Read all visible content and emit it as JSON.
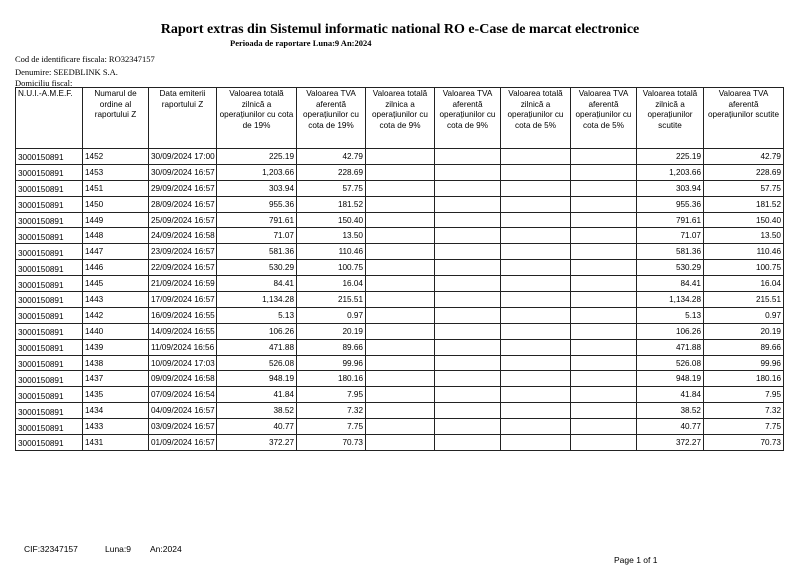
{
  "report": {
    "title": "Raport extras din Sistemul informatic national RO e-Case de marcat electronice",
    "period": "Perioada de raportare Luna:9  An:2024",
    "cod_fiscal": "Cod de identificare fiscala: RO32347157",
    "denumire": "Denumire: SEEDBLINK S.A.",
    "domiciliu": "Domiciliu fiscal:"
  },
  "table": {
    "headers": [
      "N.U.I.-A.M.E.F.",
      "Numarul de ordine al raportului Z",
      "Data emiterii raportului Z",
      "Valoarea totală zilnică a operațiunilor cu cota de 19%",
      "Valoarea TVA aferentă operațiunilor cu cota de 19%",
      "Valoarea totală zilnica a operațiunilor cu cota de 9%",
      "Valoarea TVA aferentă operațiunilor cu cota de 9%",
      "Valoarea totală zilnică a operațiunilor cu cota de 5%",
      "Valoarea TVA aferentă operațiunilor cu cota de 5%",
      "Valoarea totală zilnică a operațiunilor scutite",
      "Valoarea TVA aferentă operațiunilor scutite"
    ],
    "rows": [
      [
        "3000150891",
        "1452",
        "30/09/2024 17:00",
        "225.19",
        "42.79",
        "",
        "",
        "",
        "",
        "225.19",
        "42.79"
      ],
      [
        "3000150891",
        "1453",
        "30/09/2024 16:57",
        "1,203.66",
        "228.69",
        "",
        "",
        "",
        "",
        "1,203.66",
        "228.69"
      ],
      [
        "3000150891",
        "1451",
        "29/09/2024 16:57",
        "303.94",
        "57.75",
        "",
        "",
        "",
        "",
        "303.94",
        "57.75"
      ],
      [
        "3000150891",
        "1450",
        "28/09/2024 16:57",
        "955.36",
        "181.52",
        "",
        "",
        "",
        "",
        "955.36",
        "181.52"
      ],
      [
        "3000150891",
        "1449",
        "25/09/2024 16:57",
        "791.61",
        "150.40",
        "",
        "",
        "",
        "",
        "791.61",
        "150.40"
      ],
      [
        "3000150891",
        "1448",
        "24/09/2024 16:58",
        "71.07",
        "13.50",
        "",
        "",
        "",
        "",
        "71.07",
        "13.50"
      ],
      [
        "3000150891",
        "1447",
        "23/09/2024 16:57",
        "581.36",
        "110.46",
        "",
        "",
        "",
        "",
        "581.36",
        "110.46"
      ],
      [
        "3000150891",
        "1446",
        "22/09/2024 16:57",
        "530.29",
        "100.75",
        "",
        "",
        "",
        "",
        "530.29",
        "100.75"
      ],
      [
        "3000150891",
        "1445",
        "21/09/2024 16:59",
        "84.41",
        "16.04",
        "",
        "",
        "",
        "",
        "84.41",
        "16.04"
      ],
      [
        "3000150891",
        "1443",
        "17/09/2024 16:57",
        "1,134.28",
        "215.51",
        "",
        "",
        "",
        "",
        "1,134.28",
        "215.51"
      ],
      [
        "3000150891",
        "1442",
        "16/09/2024 16:55",
        "5.13",
        "0.97",
        "",
        "",
        "",
        "",
        "5.13",
        "0.97"
      ],
      [
        "3000150891",
        "1440",
        "14/09/2024 16:55",
        "106.26",
        "20.19",
        "",
        "",
        "",
        "",
        "106.26",
        "20.19"
      ],
      [
        "3000150891",
        "1439",
        "11/09/2024 16:56",
        "471.88",
        "89.66",
        "",
        "",
        "",
        "",
        "471.88",
        "89.66"
      ],
      [
        "3000150891",
        "1438",
        "10/09/2024 17:03",
        "526.08",
        "99.96",
        "",
        "",
        "",
        "",
        "526.08",
        "99.96"
      ],
      [
        "3000150891",
        "1437",
        "09/09/2024 16:58",
        "948.19",
        "180.16",
        "",
        "",
        "",
        "",
        "948.19",
        "180.16"
      ],
      [
        "3000150891",
        "1435",
        "07/09/2024 16:54",
        "41.84",
        "7.95",
        "",
        "",
        "",
        "",
        "41.84",
        "7.95"
      ],
      [
        "3000150891",
        "1434",
        "04/09/2024 16:57",
        "38.52",
        "7.32",
        "",
        "",
        "",
        "",
        "38.52",
        "7.32"
      ],
      [
        "3000150891",
        "1433",
        "03/09/2024 16:57",
        "40.77",
        "7.75",
        "",
        "",
        "",
        "",
        "40.77",
        "7.75"
      ],
      [
        "3000150891",
        "1431",
        "01/09/2024 16:57",
        "372.27",
        "70.73",
        "",
        "",
        "",
        "",
        "372.27",
        "70.73"
      ]
    ]
  },
  "footer": {
    "cif": "CIF:32347157",
    "luna": "Luna:9",
    "an": "An:2024",
    "page": "Page 1 of 1"
  }
}
